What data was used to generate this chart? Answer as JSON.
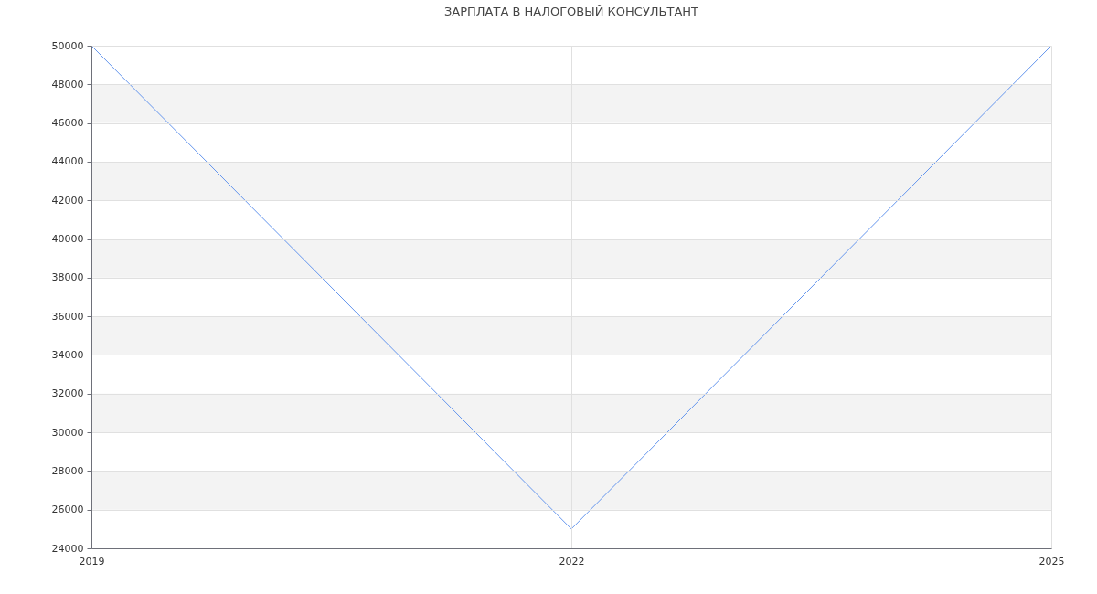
{
  "chart_data": {
    "type": "line",
    "title": "ЗАРПЛАТА В НАЛОГОВЫЙ КОНСУЛЬТАНТ",
    "x": [
      2019,
      2022,
      2025
    ],
    "series": [
      {
        "color": "#6495ed",
        "values": [
          50000,
          25000,
          50000
        ]
      }
    ],
    "xlim": [
      2019,
      2025
    ],
    "xticks": [
      2019,
      2022,
      2025
    ],
    "ylim": [
      24000,
      50000
    ],
    "yticks": [
      24000,
      26000,
      28000,
      30000,
      32000,
      34000,
      36000,
      38000,
      40000,
      42000,
      44000,
      46000,
      48000,
      50000
    ],
    "grid": true,
    "marker": "none",
    "line_style": "solid",
    "bands": [
      {
        "axis": "y",
        "from": 26000,
        "to": 28000,
        "color": "#f3f3f3"
      },
      {
        "axis": "y",
        "from": 30000,
        "to": 32000,
        "color": "#f3f3f3"
      },
      {
        "axis": "y",
        "from": 34000,
        "to": 36000,
        "color": "#f3f3f3"
      },
      {
        "axis": "y",
        "from": 38000,
        "to": 40000,
        "color": "#f3f3f3"
      },
      {
        "axis": "y",
        "from": 42000,
        "to": 44000,
        "color": "#f3f3f3"
      },
      {
        "axis": "y",
        "from": 46000,
        "to": 48000,
        "color": "#f3f3f3"
      }
    ]
  }
}
